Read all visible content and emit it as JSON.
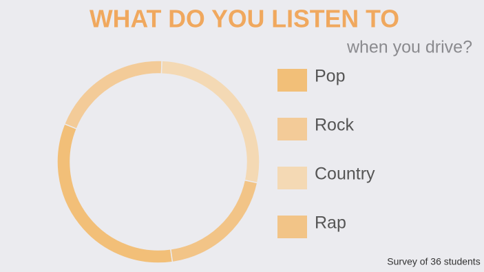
{
  "chart_data": {
    "type": "donut",
    "title": "WHAT DO YOU LISTEN TO",
    "subtitle": "when you drive?",
    "note": "Survey of 36 students",
    "categories": [
      "Pop",
      "Rock",
      "Country",
      "Rap"
    ],
    "values": [
      12,
      7,
      10,
      7
    ],
    "colors": [
      "#f2bf78",
      "#f3cb98",
      "#f4d9b4",
      "#f2c487"
    ]
  }
}
